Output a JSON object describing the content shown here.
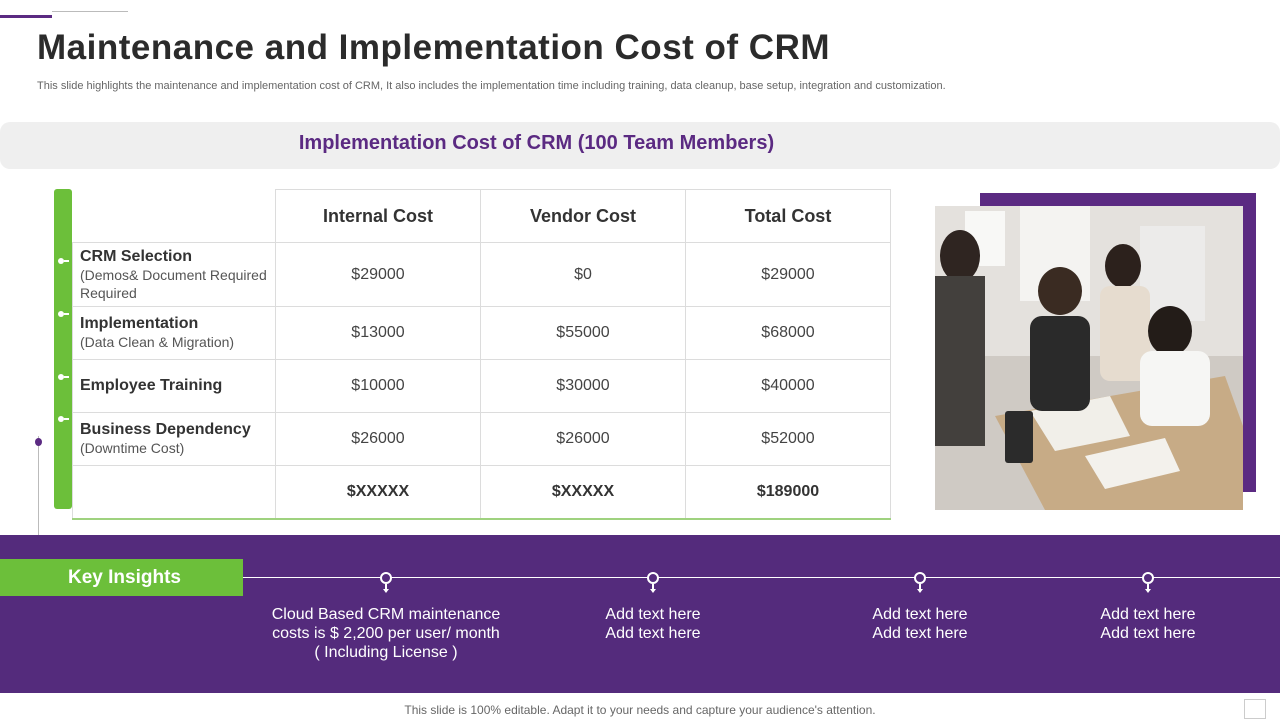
{
  "page": {
    "title": "Maintenance and Implementation Cost of CRM",
    "subtitle": "This slide highlights the maintenance and implementation cost of CRM, It also includes the implementation time including training, data cleanup, base setup, integration and customization."
  },
  "section": {
    "title": "Implementation  Cost of CRM (100 Team Members)"
  },
  "table": {
    "columns": [
      "Internal Cost",
      "Vendor Cost",
      "Total Cost"
    ],
    "rows": [
      {
        "label": "CRM Selection",
        "sublabel": "(Demos& Document Required",
        "internal": "$29000",
        "vendor": "$0",
        "total": "$29000"
      },
      {
        "label": "Implementation",
        "sublabel": "(Data Clean & Migration)",
        "internal": "$13000",
        "vendor": "$55000",
        "total": "$68000"
      },
      {
        "label": "Employee Training",
        "sublabel": "",
        "internal": "$10000",
        "vendor": "$30000",
        "total": "$40000"
      },
      {
        "label": "Business Dependency",
        "sublabel": "(Downtime Cost)",
        "internal": "$26000",
        "vendor": "$26000",
        "total": "$52000"
      }
    ],
    "totals": {
      "internal": "$XXXXX",
      "vendor": "$XXXXX",
      "total": "$189000"
    }
  },
  "insights": {
    "heading": "Key Insights",
    "items": [
      {
        "lines": [
          "Cloud Based CRM maintenance",
          "costs is $ 2,200 per user/ month",
          "( Including  License )"
        ]
      },
      {
        "lines": [
          "Add text here",
          "Add text here"
        ]
      },
      {
        "lines": [
          "Add text here",
          "Add text here"
        ]
      },
      {
        "lines": [
          "Add text here",
          "Add text here"
        ]
      }
    ]
  },
  "footer": {
    "text": "This slide is 100% editable. Adapt it to your needs and capture your audience's attention."
  },
  "colors": {
    "brand_purple": "#542b7c",
    "accent_green": "#6cbf3a",
    "title_purple": "#5b2a82"
  },
  "image": {
    "description_icon": "team-meeting-photo"
  }
}
